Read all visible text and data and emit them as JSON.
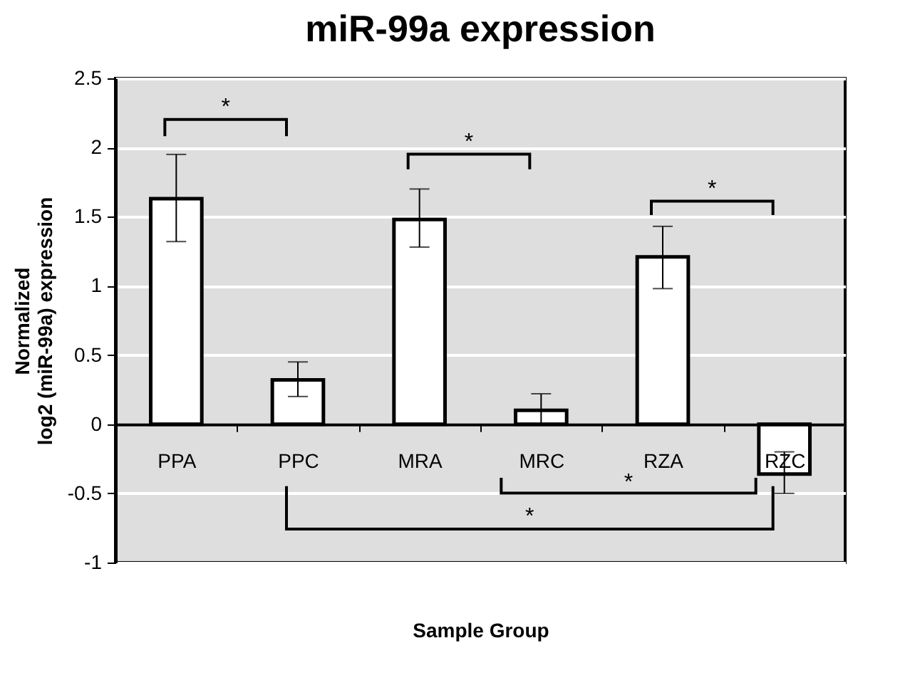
{
  "chart_data": {
    "type": "bar",
    "title": "miR-99a expression",
    "xlabel": "Sample Group",
    "ylabel": "Normalized\nlog2 (miR-99a) expression",
    "categories": [
      "PPA",
      "PPC",
      "MRA",
      "MRC",
      "RZA",
      "RZC"
    ],
    "values": [
      1.63,
      0.32,
      1.48,
      0.1,
      1.21,
      -0.36
    ],
    "errors": [
      [
        1.32,
        1.95
      ],
      [
        0.2,
        0.45
      ],
      [
        1.28,
        1.7
      ],
      [
        0,
        0.22
      ],
      [
        0.98,
        1.43
      ],
      [
        -0.5,
        -0.2
      ]
    ],
    "color": "#ffffff",
    "ylim": [
      -1,
      2.5
    ],
    "yticks": [
      -1,
      -0.5,
      0,
      0.5,
      1,
      1.5,
      2,
      2.5
    ],
    "grid": "y",
    "annotations": [
      "*",
      "*",
      "*",
      "*",
      "*"
    ]
  }
}
